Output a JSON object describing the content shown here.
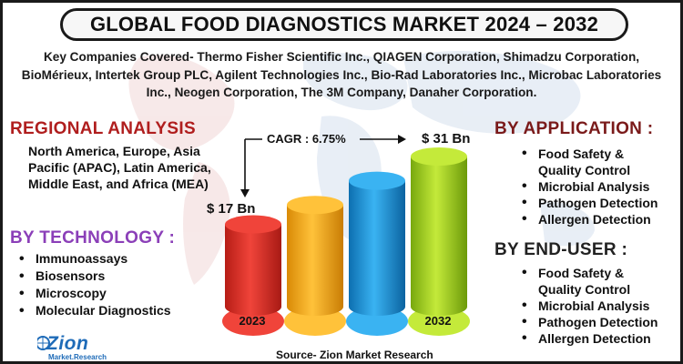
{
  "title": "GLOBAL FOOD DIAGNOSTICS MARKET 2024 – 2032",
  "companies": "Key Companies Covered- Thermo Fisher Scientific Inc., QIAGEN Corporation, Shimadzu Corporation, BioMérieux, Intertek Group PLC, Agilent Technologies Inc., Bio-Rad Laboratories Inc., Microbac Laboratories Inc., Neogen Corporation, The 3M Company, Danaher Corporation.",
  "regional": {
    "heading": "REGIONAL ANALYSIS",
    "text": "North America, Europe, Asia Pacific (APAC), Latin America, Middle East, and Africa (MEA)"
  },
  "technology": {
    "heading": "BY TECHNOLOGY :",
    "items": [
      "Immunoassays",
      " Biosensors",
      "Microscopy",
      "Molecular Diagnostics"
    ]
  },
  "application": {
    "heading": "BY APPLICATION :",
    "items": [
      "Food Safety & Quality Control",
      "Microbial Analysis",
      "Pathogen Detection",
      "Allergen Detection"
    ]
  },
  "end_user": {
    "heading": "BY END-USER :",
    "items": [
      "Food Safety & Quality Control",
      " Microbial Analysis",
      "Pathogen Detection",
      "Allergen Detection"
    ]
  },
  "cagr_label": "CAGR : 6.75%",
  "value_2023": "$ 17 Bn",
  "value_2032": "$ 31 Bn",
  "years": [
    "2023",
    "",
    "",
    "2032"
  ],
  "source": "Source- Zion Market Research",
  "logo": {
    "name": "Zion",
    "sub": "Market.Research"
  },
  "colors": {
    "bar1": "#e8332a",
    "bar2": "#f7a81b",
    "bar3": "#1b95e0",
    "bar4": "#9ccc1f",
    "red_heading": "#b01e1e",
    "purple_heading": "#8b3fb8"
  },
  "chart_data": {
    "type": "bar",
    "categories": [
      "2023",
      "",
      "",
      "2032"
    ],
    "values": [
      17,
      21,
      26,
      31
    ],
    "unit": "$ Bn",
    "ylim": [
      0,
      35
    ]
  }
}
